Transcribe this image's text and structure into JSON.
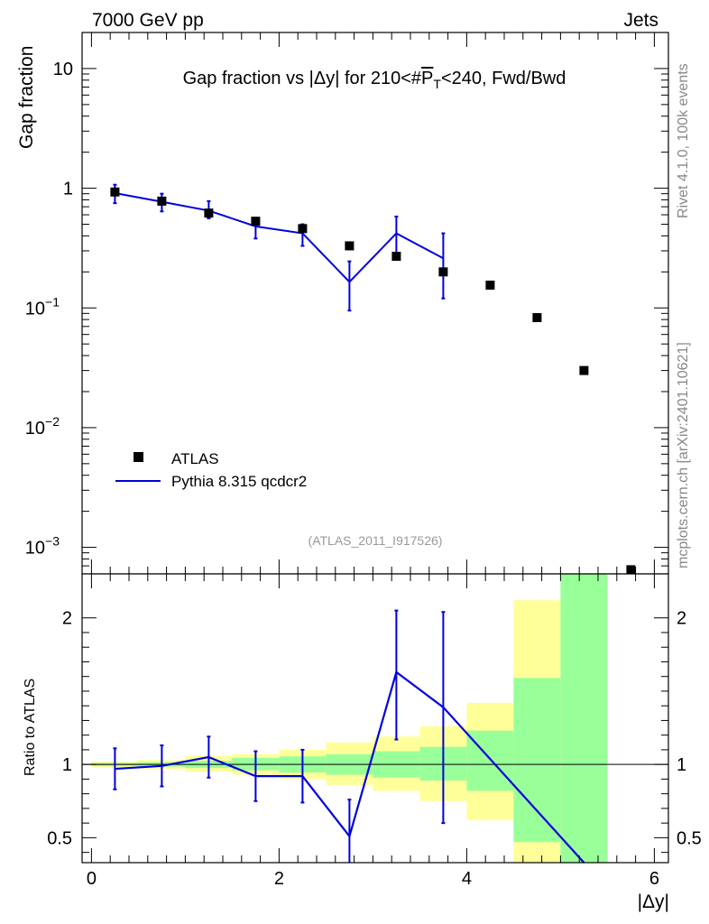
{
  "header": {
    "left": "7000 GeV pp",
    "right": "Jets"
  },
  "side_labels": {
    "rivet": "Rivet 4.1.0,  100k events",
    "mcplots": "mcplots.cern.ch [arXiv:2401.10621]"
  },
  "chart_data": [
    {
      "type": "scatter",
      "title_parts": {
        "pre": "Gap fraction vs |Δy| for 210<#",
        "overline": "P",
        "sub": "T",
        "post": "<240, Fwd/Bwd"
      },
      "ylabel": "Gap fraction",
      "yscale": "log",
      "ylim": [
        0.0006,
        20
      ],
      "xlim": [
        -0.1,
        6.15
      ],
      "yticks": [
        {
          "value": 10,
          "label": "10"
        },
        {
          "value": 1,
          "label": "1"
        },
        {
          "value": 0.1,
          "label": "10",
          "exp": "−1"
        },
        {
          "value": 0.01,
          "label": "10",
          "exp": "−2"
        },
        {
          "value": 0.001,
          "label": "10",
          "exp": "−3"
        }
      ],
      "analysis_tag": "(ATLAS_2011_I917526)",
      "legend": {
        "position": "bottom-left",
        "entries": [
          "ATLAS",
          "Pythia 8.315 qcdcr2"
        ]
      },
      "series": [
        {
          "name": "ATLAS",
          "color": "#000000",
          "marker": "square",
          "x": [
            0.25,
            0.75,
            1.25,
            1.75,
            2.25,
            2.75,
            3.25,
            3.75,
            4.25,
            4.75,
            5.25,
            5.75
          ],
          "y": [
            0.93,
            0.78,
            0.62,
            0.53,
            0.46,
            0.33,
            0.27,
            0.2,
            0.155,
            0.083,
            0.03,
            0.00065
          ]
        },
        {
          "name": "Pythia 8.315 qcdcr2",
          "color": "#0000dd",
          "marker": "line",
          "x": [
            0.25,
            0.75,
            1.25,
            1.75,
            2.25,
            2.75,
            3.25,
            3.75
          ],
          "y": [
            0.91,
            0.77,
            0.65,
            0.48,
            0.42,
            0.165,
            0.42,
            0.26
          ],
          "err_lo": [
            0.16,
            0.13,
            0.09,
            0.1,
            0.09,
            0.07,
            0.16,
            0.14
          ],
          "err_hi": [
            0.16,
            0.13,
            0.13,
            0.07,
            0.08,
            0.08,
            0.16,
            0.16
          ]
        }
      ]
    },
    {
      "type": "line",
      "ylabel": "Ratio to ATLAS",
      "xlabel": "|Δy|",
      "ylim": [
        0.33,
        2.3
      ],
      "xlim": [
        -0.1,
        6.15
      ],
      "yticks": [
        {
          "value": 2,
          "label": "2"
        },
        {
          "value": 1,
          "label": "1"
        },
        {
          "value": 0.5,
          "label": "0.5"
        }
      ],
      "xticks": [
        {
          "value": 0,
          "label": "0"
        },
        {
          "value": 2,
          "label": "2"
        },
        {
          "value": 4,
          "label": "4"
        },
        {
          "value": 6,
          "label": "6"
        }
      ],
      "bands": {
        "edges": [
          0,
          0.5,
          1.0,
          1.5,
          2.0,
          2.5,
          3.0,
          3.5,
          4.0,
          4.5,
          5.0,
          5.5
        ],
        "inner_color": "#99ff99",
        "outer_color": "#ffff99",
        "inner_lo": [
          0.99,
          0.985,
          0.975,
          0.96,
          0.945,
          0.93,
          0.91,
          0.89,
          0.82,
          0.47,
          0.3
        ],
        "inner_hi": [
          1.01,
          1.015,
          1.025,
          1.045,
          1.055,
          1.07,
          1.09,
          1.12,
          1.23,
          1.59,
          2.4
        ],
        "outer_lo": [
          0.98,
          0.97,
          0.95,
          0.93,
          0.9,
          0.86,
          0.82,
          0.75,
          0.62,
          0.3,
          0.3
        ],
        "outer_hi": [
          1.02,
          1.03,
          1.06,
          1.07,
          1.1,
          1.15,
          1.19,
          1.26,
          1.42,
          2.12,
          2.4
        ]
      },
      "series": [
        {
          "name": "Pythia 8.315 qcdcr2 / ATLAS",
          "color": "#0000dd",
          "x": [
            0.25,
            0.75,
            1.25,
            1.75,
            2.25,
            2.75,
            3.25,
            3.75,
            5.25
          ],
          "y": [
            0.97,
            0.99,
            1.05,
            0.92,
            0.92,
            0.51,
            1.63,
            1.39,
            0.33
          ],
          "err_lo": [
            0.14,
            0.14,
            0.14,
            0.17,
            0.18,
            0.2,
            0.46,
            0.79,
            0
          ],
          "err_hi": [
            0.14,
            0.14,
            0.14,
            0.17,
            0.18,
            0.25,
            0.42,
            0.65,
            0
          ]
        }
      ]
    }
  ]
}
